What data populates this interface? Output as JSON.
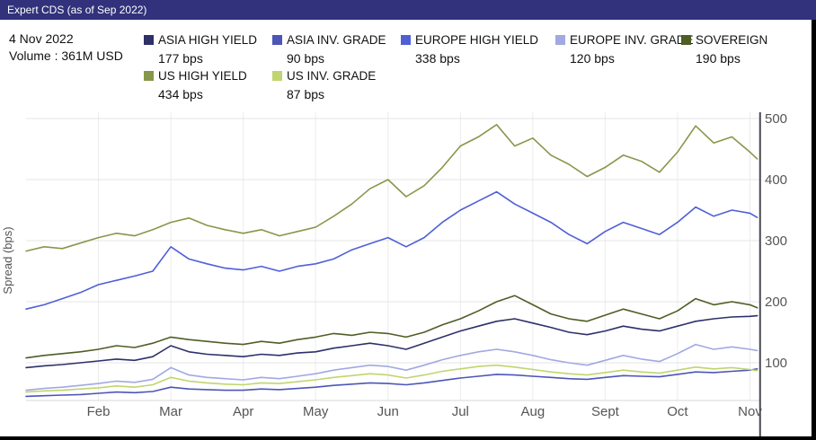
{
  "window": {
    "title": "Expert CDS (as of Sep 2022)"
  },
  "info": {
    "date": "4 Nov 2022",
    "volume": "Volume : 361M USD"
  },
  "legend": {
    "items": [
      {
        "label": "ASIA HIGH YIELD",
        "value": "177 bps"
      },
      {
        "label": "ASIA INV. GRADE",
        "value": "90 bps"
      },
      {
        "label": "EUROPE HIGH YIELD",
        "value": "338 bps"
      },
      {
        "label": "EUROPE INV. GRADE",
        "value": "120 bps"
      },
      {
        "label": "SOVEREIGN",
        "value": "190 bps"
      },
      {
        "label": "US HIGH YIELD",
        "value": "434 bps"
      },
      {
        "label": "US INV. GRADE",
        "value": "87 bps"
      }
    ]
  },
  "chart_data": {
    "type": "line",
    "title": "Expert CDS (as of Sep 2022)",
    "xlabel": "",
    "ylabel": "Spread (bps)",
    "yticks": [
      100,
      200,
      300,
      400,
      500
    ],
    "ylim": [
      38,
      512
    ],
    "legend_position": "top",
    "grid": true,
    "month_labels": [
      "Feb",
      "Mar",
      "Apr",
      "May",
      "Jun",
      "Jul",
      "Aug",
      "Sept",
      "Oct",
      "Nov"
    ],
    "x_unit": "months from 1 Jan 2022",
    "x": [
      0,
      0.25,
      0.5,
      0.75,
      1,
      1.25,
      1.5,
      1.75,
      2,
      2.25,
      2.5,
      2.75,
      3,
      3.25,
      3.5,
      3.75,
      4,
      4.25,
      4.5,
      4.75,
      5,
      5.25,
      5.5,
      5.75,
      6,
      6.25,
      6.5,
      6.75,
      7,
      7.25,
      7.5,
      7.75,
      8,
      8.25,
      8.5,
      8.75,
      9,
      9.25,
      9.5,
      9.75,
      10,
      10.1
    ],
    "crosshair_x": 10.14,
    "series": [
      {
        "name": "ASIA HIGH YIELD",
        "color": "#2d3069",
        "values": [
          92,
          95,
          97,
          100,
          103,
          106,
          104,
          110,
          128,
          118,
          114,
          112,
          110,
          114,
          112,
          116,
          118,
          124,
          128,
          132,
          128,
          122,
          132,
          142,
          152,
          160,
          168,
          172,
          165,
          158,
          150,
          146,
          152,
          160,
          155,
          152,
          160,
          168,
          172,
          175,
          176,
          177
        ]
      },
      {
        "name": "ASIA INV. GRADE",
        "color": "#4c55b8",
        "values": [
          45,
          46,
          47,
          48,
          50,
          52,
          51,
          53,
          60,
          57,
          56,
          55,
          55,
          57,
          56,
          58,
          60,
          63,
          65,
          67,
          66,
          64,
          67,
          71,
          75,
          78,
          81,
          80,
          78,
          76,
          74,
          73,
          76,
          79,
          78,
          77,
          81,
          85,
          84,
          86,
          88,
          90
        ]
      },
      {
        "name": "EUROPE HIGH YIELD",
        "color": "#4f5fd6",
        "values": [
          188,
          195,
          205,
          215,
          228,
          235,
          242,
          250,
          290,
          270,
          262,
          255,
          252,
          258,
          250,
          258,
          262,
          270,
          285,
          295,
          305,
          290,
          305,
          330,
          350,
          365,
          380,
          360,
          345,
          330,
          310,
          295,
          315,
          330,
          320,
          310,
          330,
          355,
          340,
          350,
          345,
          338
        ]
      },
      {
        "name": "EUROPE INV. GRADE",
        "color": "#a0a9e2",
        "values": [
          55,
          58,
          60,
          63,
          66,
          70,
          68,
          73,
          92,
          80,
          76,
          74,
          72,
          76,
          74,
          78,
          82,
          88,
          92,
          96,
          94,
          88,
          96,
          105,
          112,
          118,
          122,
          118,
          112,
          105,
          100,
          96,
          104,
          112,
          106,
          102,
          115,
          130,
          122,
          126,
          122,
          120
        ]
      },
      {
        "name": "SOVEREIGN",
        "color": "#4e5e26",
        "values": [
          108,
          112,
          115,
          118,
          122,
          128,
          125,
          132,
          142,
          138,
          135,
          132,
          130,
          135,
          132,
          138,
          142,
          148,
          145,
          150,
          148,
          142,
          150,
          162,
          172,
          185,
          200,
          210,
          195,
          180,
          172,
          168,
          178,
          188,
          180,
          172,
          185,
          205,
          195,
          200,
          195,
          190
        ]
      },
      {
        "name": "US HIGH YIELD",
        "color": "#87974a",
        "values": [
          283,
          290,
          287,
          296,
          305,
          312,
          308,
          318,
          330,
          337,
          325,
          318,
          312,
          318,
          308,
          315,
          322,
          340,
          360,
          385,
          400,
          372,
          390,
          420,
          455,
          470,
          490,
          455,
          468,
          440,
          425,
          405,
          420,
          440,
          430,
          412,
          445,
          488,
          460,
          470,
          445,
          434
        ]
      },
      {
        "name": "US INV. GRADE",
        "color": "#c0d56f",
        "values": [
          52,
          54,
          55,
          57,
          59,
          62,
          60,
          64,
          76,
          70,
          67,
          65,
          64,
          67,
          66,
          69,
          72,
          76,
          79,
          82,
          80,
          75,
          80,
          86,
          90,
          94,
          96,
          93,
          89,
          85,
          82,
          80,
          84,
          88,
          85,
          83,
          88,
          93,
          90,
          92,
          89,
          87
        ]
      }
    ]
  }
}
